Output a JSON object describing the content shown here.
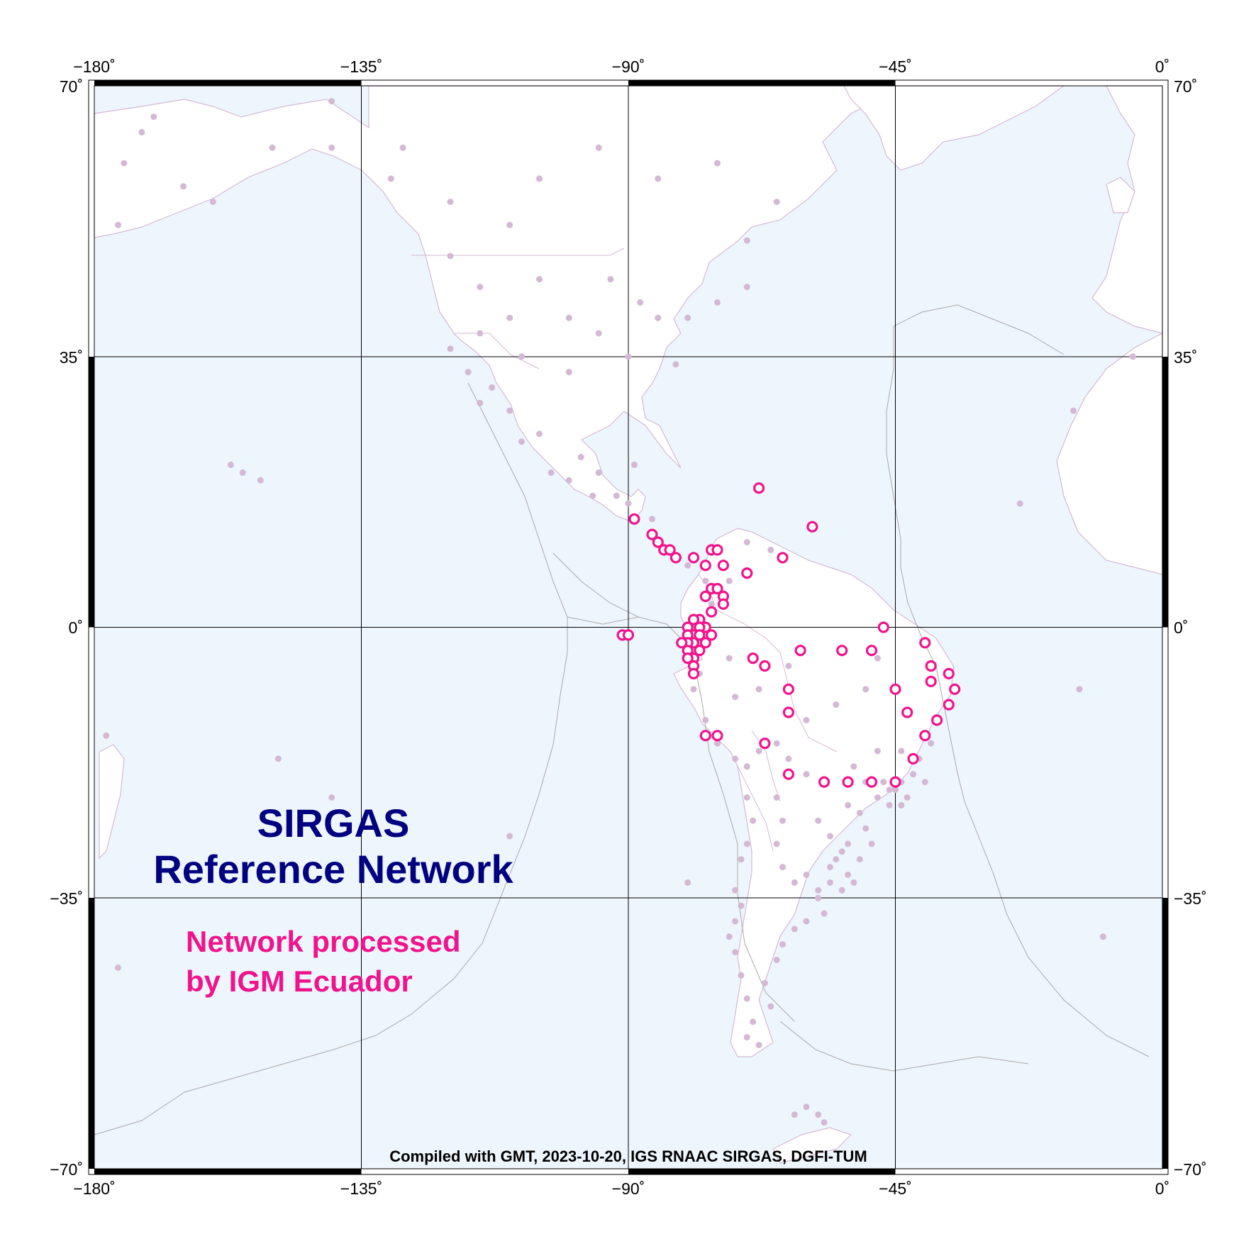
{
  "map": {
    "title_line1": "SIRGAS",
    "title_line2": "Reference Network",
    "subtitle_line1": "Network processed",
    "subtitle_line2": "by IGM Ecuador",
    "credit": "Compiled with GMT, 2023-10-20, IGS RNAAC SIRGAS, DGFI-TUM",
    "extent": {
      "lon": [
        -180,
        0
      ],
      "lat": [
        -70,
        70
      ]
    },
    "x_ticks": [
      "−180˚",
      "−135˚",
      "−90˚",
      "−45˚",
      "0˚"
    ],
    "y_ticks": [
      "70˚",
      "35˚",
      "0˚",
      "−35˚",
      "−70˚"
    ],
    "colors": {
      "ocean": "#eef6fd",
      "land": "#ffffff",
      "coast": "#d4b8d4",
      "plate_boundary": "#a8a8a8",
      "station": "#d4b8d4",
      "processed_station": "#f0148c",
      "title": "#000080",
      "subtitle": "#f0148c"
    }
  },
  "chart_data": {
    "type": "scatter",
    "xlim": [
      -180,
      0
    ],
    "ylim": [
      -70,
      70
    ],
    "series": [
      {
        "points": [
          [
            -170,
            66
          ],
          [
            -172,
            64
          ],
          [
            -175,
            60
          ],
          [
            -165,
            57
          ],
          [
            -160,
            55
          ],
          [
            -176,
            52
          ],
          [
            -155,
            20
          ],
          [
            -152,
            19
          ],
          [
            -157,
            21
          ],
          [
            -120,
            48
          ],
          [
            -115,
            44
          ],
          [
            -110,
            40
          ],
          [
            -105,
            45
          ],
          [
            -100,
            40
          ],
          [
            -95,
            38
          ],
          [
            -90,
            35
          ],
          [
            -85,
            40
          ],
          [
            -80,
            40
          ],
          [
            -75,
            42
          ],
          [
            -70,
            44
          ],
          [
            -82,
            34
          ],
          [
            -88,
            42
          ],
          [
            -93,
            45
          ],
          [
            -100,
            33
          ],
          [
            -108,
            35
          ],
          [
            -115,
            38
          ],
          [
            -120,
            36
          ],
          [
            -117,
            33
          ],
          [
            -105,
            58
          ],
          [
            -95,
            62
          ],
          [
            -85,
            58
          ],
          [
            -75,
            60
          ],
          [
            -65,
            55
          ],
          [
            -70,
            50
          ],
          [
            -110,
            52
          ],
          [
            -120,
            55
          ],
          [
            -130,
            58
          ],
          [
            -128,
            62
          ],
          [
            -140,
            62
          ],
          [
            -150,
            62
          ],
          [
            -140,
            68
          ],
          [
            -110,
            28
          ],
          [
            -105,
            25
          ],
          [
            -103,
            20
          ],
          [
            -100,
            19
          ],
          [
            -98,
            22
          ],
          [
            -96,
            17
          ],
          [
            -92,
            17
          ],
          [
            -95,
            20
          ],
          [
            -108,
            24
          ],
          [
            -113,
            31
          ],
          [
            -115,
            29
          ],
          [
            -89,
            21
          ],
          [
            -90,
            16
          ],
          [
            -86,
            14
          ],
          [
            -84,
            10
          ],
          [
            -80,
            8
          ],
          [
            -77,
            6
          ],
          [
            -75,
            10
          ],
          [
            -74,
            4
          ],
          [
            -76,
            3
          ],
          [
            -73,
            6
          ],
          [
            -70,
            11
          ],
          [
            -66,
            10
          ],
          [
            -78,
            -6
          ],
          [
            -79,
            -8
          ],
          [
            -77,
            -12
          ],
          [
            -75,
            -15
          ],
          [
            -72,
            -17
          ],
          [
            -70,
            -18
          ],
          [
            -68,
            -16
          ],
          [
            -65,
            -15
          ],
          [
            -63,
            -17
          ],
          [
            -60,
            -19
          ],
          [
            -70,
            -22
          ],
          [
            -69,
            -25
          ],
          [
            -70,
            -28
          ],
          [
            -71,
            -30
          ],
          [
            -72,
            -34
          ],
          [
            -71,
            -36
          ],
          [
            -72,
            -38
          ],
          [
            -73,
            -40
          ],
          [
            -72,
            -42
          ],
          [
            -71,
            -45
          ],
          [
            -70,
            -48
          ],
          [
            -69,
            -51
          ],
          [
            -70,
            -53
          ],
          [
            -68,
            -54
          ],
          [
            -65,
            -22
          ],
          [
            -64,
            -25
          ],
          [
            -65,
            -28
          ],
          [
            -64,
            -31
          ],
          [
            -62,
            -33
          ],
          [
            -60,
            -32
          ],
          [
            -58,
            -34
          ],
          [
            -58,
            -35
          ],
          [
            -57,
            -37
          ],
          [
            -60,
            -38
          ],
          [
            -62,
            -39
          ],
          [
            -64,
            -41
          ],
          [
            -65,
            -43
          ],
          [
            -67,
            -46
          ],
          [
            -66,
            -49
          ],
          [
            -58,
            -25
          ],
          [
            -56,
            -27
          ],
          [
            -55,
            -30
          ],
          [
            -53,
            -32
          ],
          [
            -54,
            -34
          ],
          [
            -56,
            -31
          ],
          [
            -53,
            -23
          ],
          [
            -51,
            -24
          ],
          [
            -50,
            -26
          ],
          [
            -49,
            -28
          ],
          [
            -48,
            -22
          ],
          [
            -47,
            -20
          ],
          [
            -46,
            -23
          ],
          [
            -45,
            -21
          ],
          [
            -44,
            -20
          ],
          [
            -43,
            -22
          ],
          [
            -42,
            -19
          ],
          [
            -41,
            -17
          ],
          [
            -39,
            -15
          ],
          [
            -40,
            -20
          ],
          [
            -44,
            -23
          ],
          [
            -46,
            -21
          ],
          [
            -50,
            -20
          ],
          [
            -52,
            -18
          ],
          [
            -48,
            -16
          ],
          [
            -44,
            -16
          ],
          [
            -53,
            -28
          ],
          [
            -51,
            -30
          ],
          [
            -52,
            -33
          ],
          [
            -54,
            -29
          ],
          [
            -56,
            -33
          ],
          [
            -60,
            -12
          ],
          [
            -55,
            -10
          ],
          [
            -50,
            -8
          ],
          [
            -48,
            -4
          ],
          [
            -63,
            -5
          ],
          [
            -68,
            -8
          ],
          [
            -72,
            -9
          ],
          [
            -73,
            -4
          ],
          [
            -60,
            -62
          ],
          [
            -58,
            -63
          ],
          [
            -57,
            -64
          ],
          [
            -62,
            -63
          ],
          [
            -14,
            -8
          ],
          [
            -24,
            16
          ],
          [
            -15,
            28
          ],
          [
            -5,
            35
          ],
          [
            -10,
            -40
          ],
          [
            -176,
            -44
          ],
          [
            -178,
            -14
          ],
          [
            -149,
            -17
          ],
          [
            -140,
            -22
          ],
          [
            -110,
            -27
          ],
          [
            -80,
            -33
          ]
        ]
      },
      {
        "points": [
          [
            -68,
            18
          ],
          [
            -59,
            13
          ],
          [
            -89,
            14
          ],
          [
            -86,
            12
          ],
          [
            -85,
            11
          ],
          [
            -84,
            10
          ],
          [
            -83,
            10
          ],
          [
            -82,
            9
          ],
          [
            -79,
            9
          ],
          [
            -76,
            10
          ],
          [
            -75,
            10
          ],
          [
            -74,
            8
          ],
          [
            -70,
            7
          ],
          [
            -64,
            9
          ],
          [
            -77,
            8
          ],
          [
            -77,
            4
          ],
          [
            -76,
            5
          ],
          [
            -75,
            5
          ],
          [
            -74,
            4
          ],
          [
            -74,
            3
          ],
          [
            -76,
            2
          ],
          [
            -78,
            1
          ],
          [
            -79,
            1
          ],
          [
            -77,
            0
          ],
          [
            -80,
            0
          ],
          [
            -78,
            0
          ],
          [
            -79,
            -1
          ],
          [
            -80,
            -1
          ],
          [
            -78,
            -1
          ],
          [
            -79,
            -2
          ],
          [
            -80,
            -2
          ],
          [
            -77,
            -2
          ],
          [
            -81,
            -2
          ],
          [
            -78,
            -3
          ],
          [
            -80,
            -3
          ],
          [
            -79,
            -4
          ],
          [
            -80,
            -4
          ],
          [
            -79,
            -5
          ],
          [
            -79,
            -6
          ],
          [
            -76,
            -1
          ],
          [
            -91,
            -1
          ],
          [
            -90,
            -1
          ],
          [
            -61,
            -3
          ],
          [
            -54,
            -3
          ],
          [
            -47,
            0
          ],
          [
            -49,
            -3
          ],
          [
            -40,
            -2
          ],
          [
            -39,
            -5
          ],
          [
            -39,
            -7
          ],
          [
            -36,
            -6
          ],
          [
            -35,
            -8
          ],
          [
            -36,
            -10
          ],
          [
            -38,
            -12
          ],
          [
            -40,
            -14
          ],
          [
            -42,
            -17
          ],
          [
            -43,
            -11
          ],
          [
            -45,
            -8
          ],
          [
            -49,
            -20
          ],
          [
            -45,
            -20
          ],
          [
            -67,
            -5
          ],
          [
            -63,
            -8
          ],
          [
            -69,
            -4
          ],
          [
            -63,
            -11
          ],
          [
            -57,
            -20
          ],
          [
            -63,
            -19
          ],
          [
            -67,
            -15
          ],
          [
            -77,
            -14
          ],
          [
            -75,
            -14
          ],
          [
            -53,
            -20
          ]
        ]
      }
    ]
  }
}
